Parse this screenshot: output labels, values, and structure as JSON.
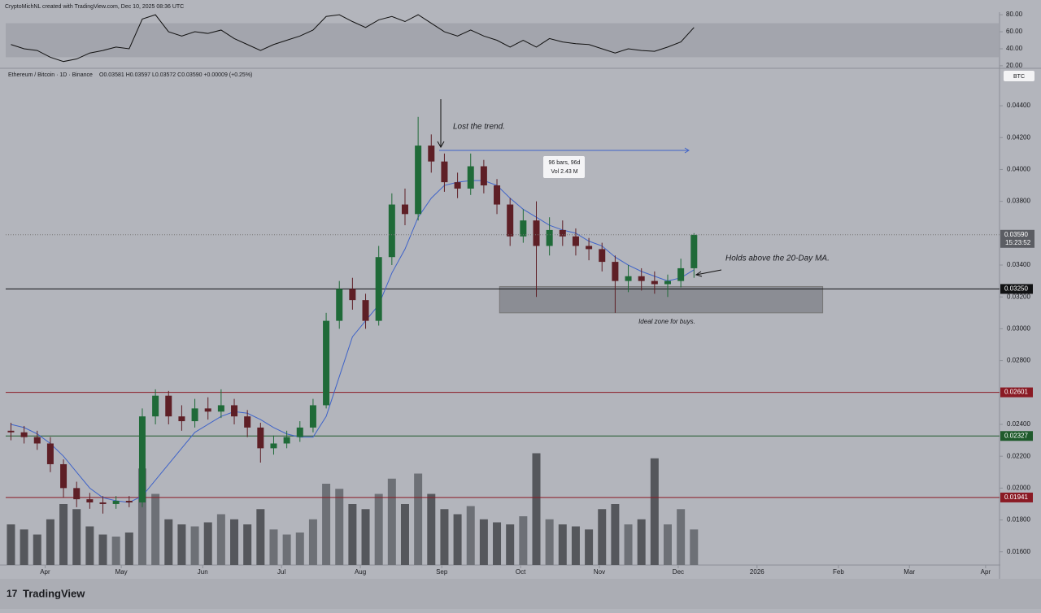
{
  "header": "CryptoMichNL created with TradingView.com, Dec 10, 2025 08:36 UTC",
  "footer": "TradingView",
  "chart_data": {
    "type": "candlestick",
    "symbol_legend": "Ethereum / Bitcoin · 1D · Binance",
    "ohlc_legend": "O0.03581 H0.03597 L0.03572 C0.03590 +0.00009 (+0.25%)",
    "currency": "BTC",
    "up_color": "#1f6a38",
    "down_color": "#5e1f26",
    "ma_color": "#3f63c8",
    "x": [
      2,
      7,
      12,
      17,
      22,
      27,
      32,
      37,
      42,
      47,
      52,
      57,
      62,
      67,
      72,
      77,
      82,
      87,
      92,
      97,
      102,
      107,
      112,
      117,
      122,
      127,
      132,
      137,
      142,
      147,
      152,
      157,
      162,
      167,
      172,
      177,
      182,
      187,
      192,
      197,
      202,
      207,
      212,
      217,
      222,
      227,
      232,
      237,
      242,
      247,
      252,
      257,
      262
    ],
    "open": [
      0.0236,
      0.0235,
      0.0232,
      0.0228,
      0.0215,
      0.02,
      0.0193,
      0.0191,
      0.019,
      0.0192,
      0.0191,
      0.0245,
      0.0258,
      0.0245,
      0.0242,
      0.025,
      0.0248,
      0.0252,
      0.0245,
      0.0238,
      0.0225,
      0.0228,
      0.0232,
      0.0238,
      0.0252,
      0.0305,
      0.0325,
      0.0318,
      0.0305,
      0.0345,
      0.0378,
      0.0372,
      0.0415,
      0.0405,
      0.0392,
      0.0388,
      0.0402,
      0.039,
      0.0378,
      0.0358,
      0.0368,
      0.0352,
      0.0362,
      0.0358,
      0.0352,
      0.035,
      0.0342,
      0.033,
      0.0333,
      0.033,
      0.0328,
      0.033,
      0.0338
    ],
    "high": [
      0.0241,
      0.0239,
      0.0236,
      0.0232,
      0.0218,
      0.0204,
      0.0197,
      0.0195,
      0.0195,
      0.0195,
      0.025,
      0.0262,
      0.0261,
      0.0252,
      0.0256,
      0.0257,
      0.0262,
      0.0256,
      0.0249,
      0.0241,
      0.0233,
      0.0236,
      0.0242,
      0.0256,
      0.031,
      0.033,
      0.0332,
      0.0322,
      0.0352,
      0.0385,
      0.0388,
      0.0433,
      0.0422,
      0.041,
      0.0398,
      0.041,
      0.0406,
      0.0394,
      0.0382,
      0.0375,
      0.038,
      0.037,
      0.0368,
      0.0363,
      0.0357,
      0.0354,
      0.0346,
      0.034,
      0.0338,
      0.0336,
      0.0334,
      0.0344,
      0.036
    ],
    "low": [
      0.023,
      0.0228,
      0.0224,
      0.021,
      0.0194,
      0.0188,
      0.0187,
      0.0184,
      0.0187,
      0.0188,
      0.0188,
      0.024,
      0.024,
      0.0236,
      0.0238,
      0.0243,
      0.0244,
      0.024,
      0.0232,
      0.0216,
      0.0221,
      0.0225,
      0.0229,
      0.0235,
      0.025,
      0.03,
      0.0312,
      0.03,
      0.0302,
      0.034,
      0.0365,
      0.0368,
      0.0398,
      0.0386,
      0.0382,
      0.0384,
      0.0385,
      0.0372,
      0.0352,
      0.0354,
      0.032,
      0.0346,
      0.0352,
      0.0346,
      0.0343,
      0.0336,
      0.031,
      0.0323,
      0.0324,
      0.0322,
      0.032,
      0.0326,
      0.0332
    ],
    "close": [
      0.0235,
      0.0232,
      0.0228,
      0.0215,
      0.02,
      0.0193,
      0.0191,
      0.019,
      0.0192,
      0.0191,
      0.0245,
      0.0258,
      0.0245,
      0.0242,
      0.025,
      0.0248,
      0.0252,
      0.0245,
      0.0238,
      0.0225,
      0.0228,
      0.0232,
      0.0238,
      0.0252,
      0.0305,
      0.0325,
      0.0318,
      0.0305,
      0.0345,
      0.0378,
      0.0372,
      0.0415,
      0.0405,
      0.0392,
      0.0388,
      0.0402,
      0.039,
      0.0378,
      0.0358,
      0.0368,
      0.0352,
      0.0362,
      0.0358,
      0.0352,
      0.035,
      0.0342,
      0.033,
      0.0333,
      0.033,
      0.0328,
      0.033,
      0.0338,
      0.0359
    ],
    "ma": [
      0.024,
      0.0238,
      0.0234,
      0.0228,
      0.022,
      0.021,
      0.02,
      0.0194,
      0.0192,
      0.0191,
      0.0195,
      0.0205,
      0.0215,
      0.0225,
      0.0235,
      0.024,
      0.0245,
      0.0248,
      0.0247,
      0.0243,
      0.0238,
      0.0234,
      0.0232,
      0.0232,
      0.0245,
      0.027,
      0.0295,
      0.0305,
      0.0315,
      0.0335,
      0.035,
      0.037,
      0.0382,
      0.039,
      0.0392,
      0.0393,
      0.0393,
      0.039,
      0.0382,
      0.0375,
      0.037,
      0.0365,
      0.0362,
      0.036,
      0.0355,
      0.0352,
      0.0345,
      0.034,
      0.0336,
      0.0333,
      0.033,
      0.0332,
      0.0337
    ],
    "volume": [
      40,
      35,
      30,
      45,
      60,
      55,
      38,
      30,
      28,
      32,
      95,
      70,
      45,
      40,
      38,
      42,
      50,
      45,
      40,
      55,
      35,
      30,
      32,
      45,
      80,
      75,
      60,
      55,
      70,
      85,
      60,
      90,
      70,
      55,
      50,
      58,
      45,
      42,
      40,
      48,
      110,
      45,
      40,
      38,
      35,
      55,
      60,
      40,
      45,
      105,
      40,
      55,
      35
    ],
    "vlim": [
      0,
      120
    ],
    "xlim": [
      0,
      378
    ],
    "xticks": [
      {
        "value": 15,
        "label": "Apr"
      },
      {
        "value": 44,
        "label": "May"
      },
      {
        "value": 75,
        "label": "Jun"
      },
      {
        "value": 105,
        "label": "Jul"
      },
      {
        "value": 135,
        "label": "Aug"
      },
      {
        "value": 166,
        "label": "Sep"
      },
      {
        "value": 196,
        "label": "Oct"
      },
      {
        "value": 226,
        "label": "Nov"
      },
      {
        "value": 256,
        "label": "Dec"
      },
      {
        "value": 286,
        "label": "2026"
      },
      {
        "value": 317,
        "label": "Feb"
      },
      {
        "value": 344,
        "label": "Mar"
      },
      {
        "value": 373,
        "label": "Apr"
      }
    ],
    "ylim": [
      0.01517,
      0.0463
    ],
    "yticks": [
      {
        "value": 0.044,
        "label": "0.04400"
      },
      {
        "value": 0.042,
        "label": "0.04200"
      },
      {
        "value": 0.04,
        "label": "0.04000"
      },
      {
        "value": 0.038,
        "label": "0.03800"
      },
      {
        "value": 0.034,
        "label": "0.03400"
      },
      {
        "value": 0.032,
        "label": "0.03200"
      },
      {
        "value": 0.03,
        "label": "0.03000"
      },
      {
        "value": 0.028,
        "label": "0.02800"
      },
      {
        "value": 0.024,
        "label": "0.02400"
      },
      {
        "value": 0.022,
        "label": "0.02200"
      },
      {
        "value": 0.02,
        "label": "0.02000"
      },
      {
        "value": 0.018,
        "label": "0.01800"
      },
      {
        "value": 0.016,
        "label": "0.01600"
      }
    ],
    "levels": [
      {
        "value": 0.0325,
        "label": "0.03250",
        "color": "#111214"
      },
      {
        "value": 0.02601,
        "label": "0.02601",
        "color": "#8a1a24"
      },
      {
        "value": 0.02327,
        "label": "0.02327",
        "color": "#1f5a2c"
      },
      {
        "value": 0.01941,
        "label": "0.01941",
        "color": "#8a1a24"
      }
    ],
    "last_price": {
      "value": 0.0359,
      "label": "0.03590"
    },
    "countdown": "15:23:52",
    "zone": {
      "x": [
        188,
        311
      ],
      "y": [
        0.031,
        0.03265
      ]
    },
    "annotations": {
      "lost_trend": "Lost the trend.",
      "measure_bars": "96 bars, 96d",
      "measure_vol": "Vol 2.43 M",
      "holds": "Holds above the 20-Day MA.",
      "ideal_zone": "Ideal zone for buys."
    },
    "rsi": {
      "values": [
        45,
        40,
        38,
        30,
        25,
        28,
        35,
        38,
        42,
        40,
        75,
        80,
        60,
        55,
        60,
        58,
        62,
        52,
        45,
        38,
        45,
        50,
        55,
        62,
        78,
        80,
        72,
        65,
        74,
        78,
        72,
        80,
        70,
        60,
        55,
        62,
        55,
        50,
        42,
        50,
        42,
        52,
        48,
        46,
        45,
        40,
        35,
        40,
        38,
        37,
        42,
        48,
        65
      ],
      "ylim": [
        18,
        83
      ],
      "band": [
        30,
        70
      ],
      "yticks": [
        {
          "value": 80,
          "label": "80.00"
        },
        {
          "value": 60,
          "label": "60.00"
        },
        {
          "value": 40,
          "label": "40.00"
        },
        {
          "value": 20,
          "label": "20.00"
        }
      ]
    }
  }
}
